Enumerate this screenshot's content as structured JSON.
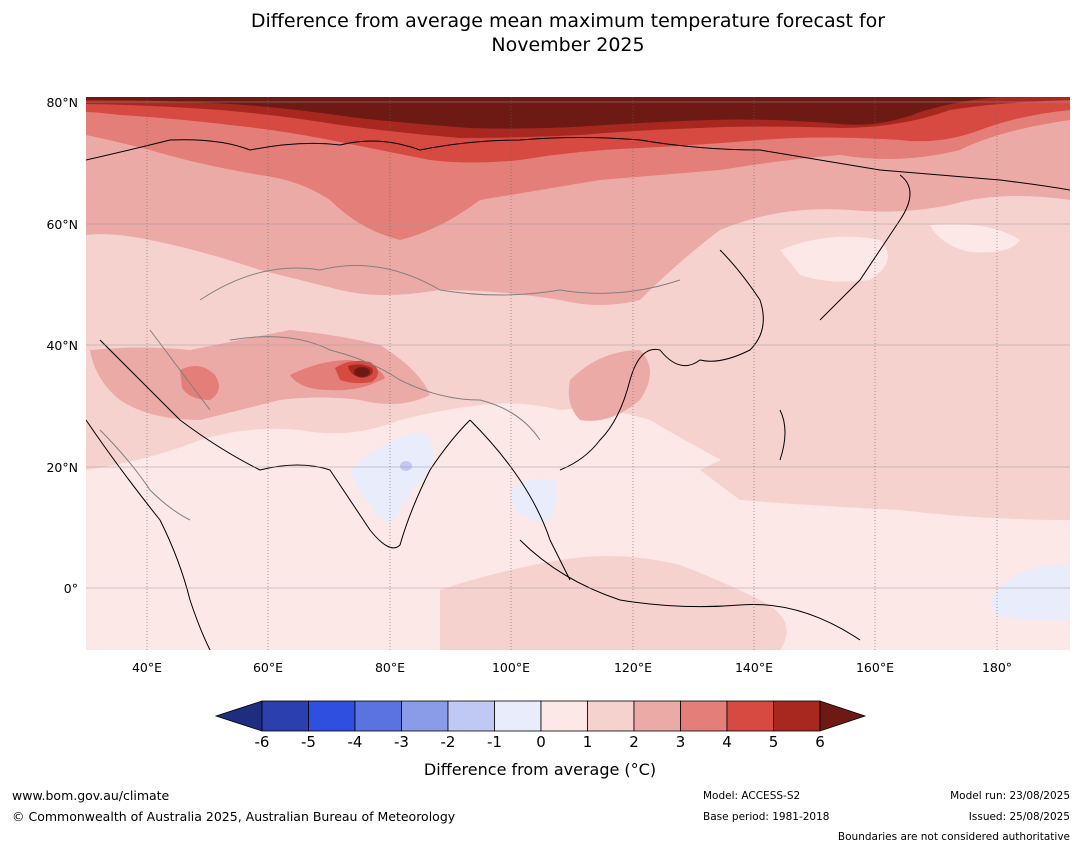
{
  "title_line1": "Difference from average mean maximum temperature forecast for",
  "title_line2": "November 2025",
  "lat_labels": [
    "80°N",
    "60°N",
    "40°N",
    "20°N",
    "0°"
  ],
  "lon_labels": [
    "40°E",
    "60°E",
    "80°E",
    "100°E",
    "120°E",
    "140°E",
    "160°E",
    "180°"
  ],
  "colorbar": {
    "labels": [
      "-6",
      "-5",
      "-4",
      "-3",
      "-2",
      "-1",
      "0",
      "1",
      "2",
      "3",
      "4",
      "5",
      "6"
    ],
    "colors": [
      "#1f2d80",
      "#2b3fae",
      "#2f4fe0",
      "#5b73e0",
      "#8a9ce8",
      "#c0c8f4",
      "#e8ecfb",
      "#fce8e6",
      "#f6d2cf",
      "#ecaaa7",
      "#e47e79",
      "#d64a41",
      "#a8281f",
      "#6e1a14"
    ],
    "title": "Difference from average (°C)"
  },
  "footer": {
    "url": "www.bom.gov.au/climate",
    "copyright": "© Commonwealth of Australia 2025, Australian Bureau of Meteorology",
    "model": "Model: ACCESS-S2",
    "base_period": "Base period: 1981-2018",
    "model_run": "Model run: 23/08/2025",
    "issued": "Issued: 25/08/2025",
    "disclaimer": "Boundaries are not considered authoritative"
  }
}
